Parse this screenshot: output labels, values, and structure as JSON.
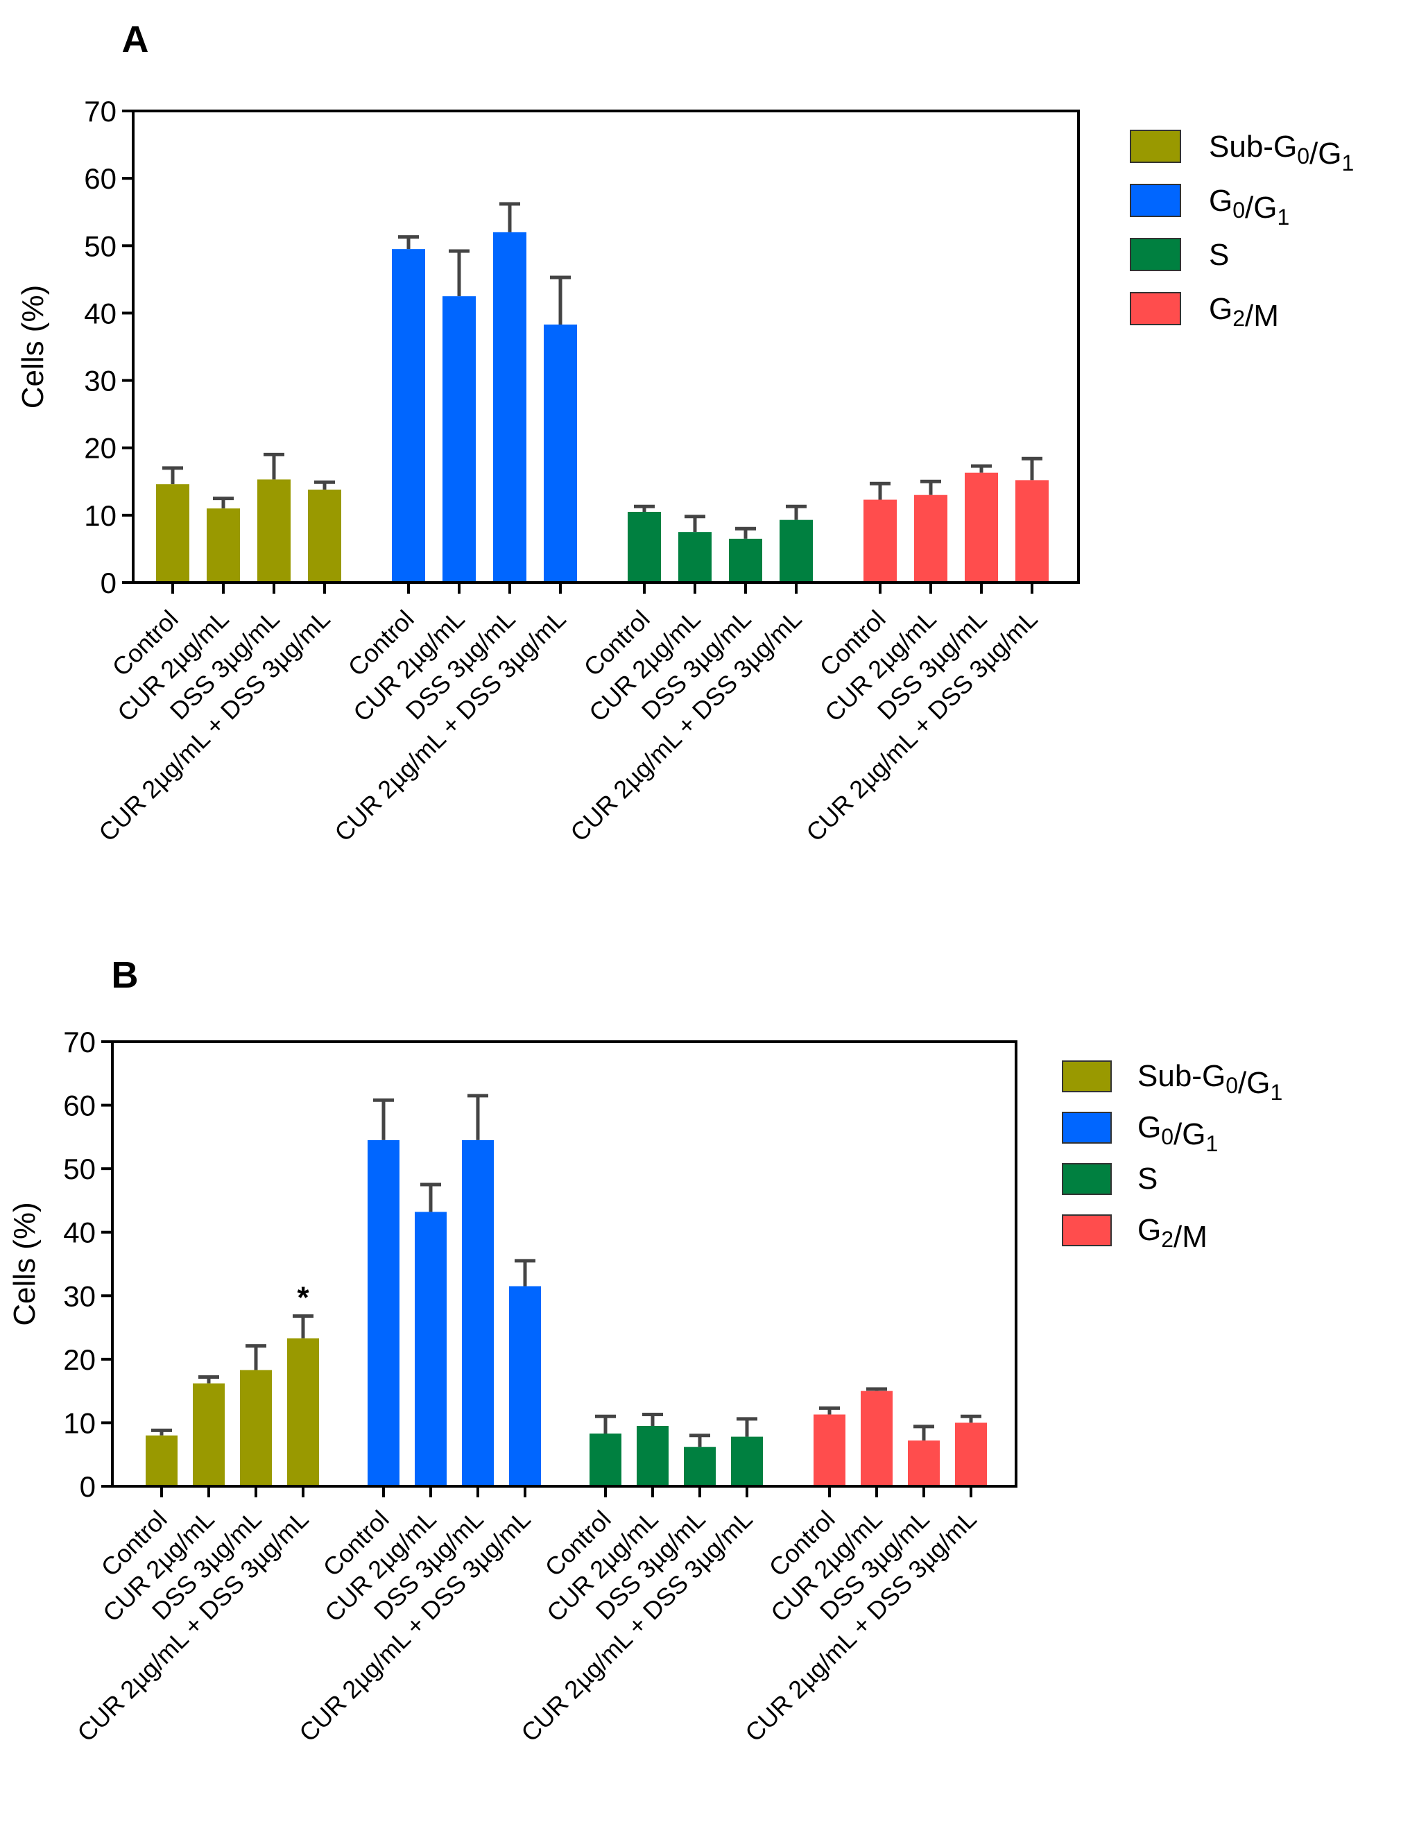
{
  "chart_data": [
    {
      "panel": "A",
      "type": "bar",
      "ylabel": "Cells (%)",
      "ylim": [
        0,
        70
      ],
      "yticks": [
        "0",
        "10",
        "20",
        "30",
        "40",
        "50",
        "60",
        "70"
      ],
      "categories": [
        "Control",
        "CUR 2µg/mL",
        "DSS 3µg/mL",
        "CUR 2µg/mL + DSS 3µg/mL"
      ],
      "legend_position": "right",
      "series": [
        {
          "name": "Sub-G0/G1",
          "color": "#999900",
          "values": [
            14.6,
            11.0,
            15.3,
            13.8
          ],
          "errors": [
            2.4,
            1.5,
            3.7,
            1.1
          ]
        },
        {
          "name": "G0/G1",
          "color": "#0066ff",
          "values": [
            49.5,
            42.5,
            52.0,
            38.3
          ],
          "errors": [
            1.8,
            6.7,
            4.2,
            7.0
          ]
        },
        {
          "name": "S",
          "color": "#008040",
          "values": [
            10.5,
            7.5,
            6.5,
            9.3
          ],
          "errors": [
            0.8,
            2.3,
            1.5,
            2.0
          ]
        },
        {
          "name": "G2/M",
          "color": "#ff4d4d",
          "values": [
            12.3,
            13.0,
            16.3,
            15.2
          ],
          "errors": [
            2.4,
            2.0,
            1.0,
            3.2
          ]
        }
      ],
      "annotations": []
    },
    {
      "panel": "B",
      "type": "bar",
      "ylabel": "Cells (%)",
      "ylim": [
        0,
        70
      ],
      "yticks": [
        "0",
        "10",
        "20",
        "30",
        "40",
        "50",
        "60",
        "70"
      ],
      "categories": [
        "Control",
        "CUR 2µg/mL",
        "DSS 3µg/mL",
        "CUR 2µg/mL + DSS 3µg/mL"
      ],
      "legend_position": "right",
      "series": [
        {
          "name": "Sub-G0/G1",
          "color": "#999900",
          "values": [
            8.0,
            16.2,
            18.3,
            23.3
          ],
          "errors": [
            0.8,
            1.0,
            3.8,
            3.5
          ]
        },
        {
          "name": "G0/G1",
          "color": "#0066ff",
          "values": [
            54.5,
            43.2,
            54.5,
            31.5
          ],
          "errors": [
            6.3,
            4.3,
            7.0,
            4.0
          ]
        },
        {
          "name": "S",
          "color": "#008040",
          "values": [
            8.3,
            9.5,
            6.2,
            7.8
          ],
          "errors": [
            2.7,
            1.8,
            1.8,
            2.8
          ]
        },
        {
          "name": "G2/M",
          "color": "#ff4d4d",
          "values": [
            11.3,
            15.0,
            7.2,
            10.0
          ],
          "errors": [
            1.0,
            0.3,
            2.2,
            1.0
          ]
        }
      ],
      "annotations": [
        {
          "series": 0,
          "bar": 3,
          "text": "*"
        }
      ]
    }
  ]
}
